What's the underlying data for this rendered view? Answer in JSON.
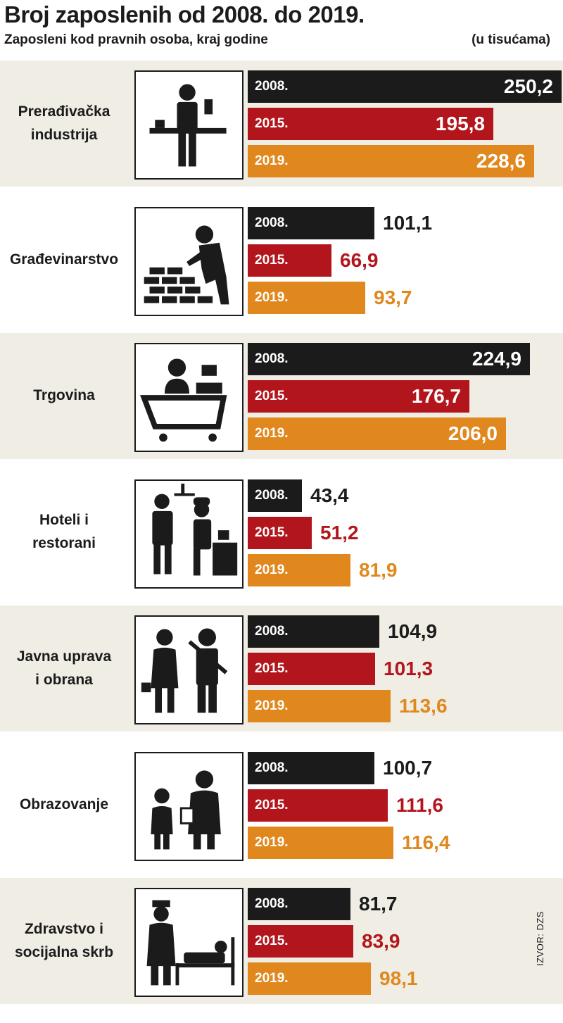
{
  "colors": {
    "background_shaded": "#efede4",
    "background_plain": "#ffffff",
    "text": "#1b1b1b",
    "series_2008": "#1b1b1b",
    "series_2015": "#b3151c",
    "series_2019": "#e0881e"
  },
  "chart_data": {
    "type": "bar",
    "orientation": "horizontal",
    "title": "Broj zaposlenih od 2008. do 2019.",
    "subtitle": "Zaposleni kod pravnih osoba, kraj godine",
    "unit": "(u tisućama)",
    "source": "IZVOR: DZS",
    "categories": [
      "Prerađivačka\nindustrija",
      "Građevinarstvo",
      "Trgovina",
      "Hoteli i\nrestorani",
      "Javna uprava\ni obrana",
      "Obrazovanje",
      "Zdravstvo i\nsocijalna skrb"
    ],
    "category_icons": [
      "factory-worker-icon",
      "bricklayer-icon",
      "shop-cashier-icon",
      "waiter-chef-icon",
      "official-soldier-icon",
      "teacher-pupil-icon",
      "nurse-patient-icon"
    ],
    "value_labels": [
      [
        "250,2",
        "195,8",
        "228,6"
      ],
      [
        "101,1",
        "66,9",
        "93,7"
      ],
      [
        "224,9",
        "176,7",
        "206,0"
      ],
      [
        "43,4",
        "51,2",
        "81,9"
      ],
      [
        "104,9",
        "101,3",
        "113,6"
      ],
      [
        "100,7",
        "111,6",
        "116,4"
      ],
      [
        "81,7",
        "83,9",
        "98,1"
      ]
    ],
    "series": [
      {
        "name": "2008.",
        "color": "#1b1b1b",
        "values": [
          250.2,
          101.1,
          224.9,
          43.4,
          104.9,
          100.7,
          81.7
        ]
      },
      {
        "name": "2015.",
        "color": "#b3151c",
        "values": [
          195.8,
          66.9,
          176.7,
          51.2,
          101.3,
          111.6,
          83.9
        ]
      },
      {
        "name": "2019.",
        "color": "#e0881e",
        "values": [
          228.6,
          93.7,
          206.0,
          81.9,
          113.6,
          116.4,
          98.1
        ]
      }
    ],
    "xlim": [
      0,
      250.2
    ]
  }
}
